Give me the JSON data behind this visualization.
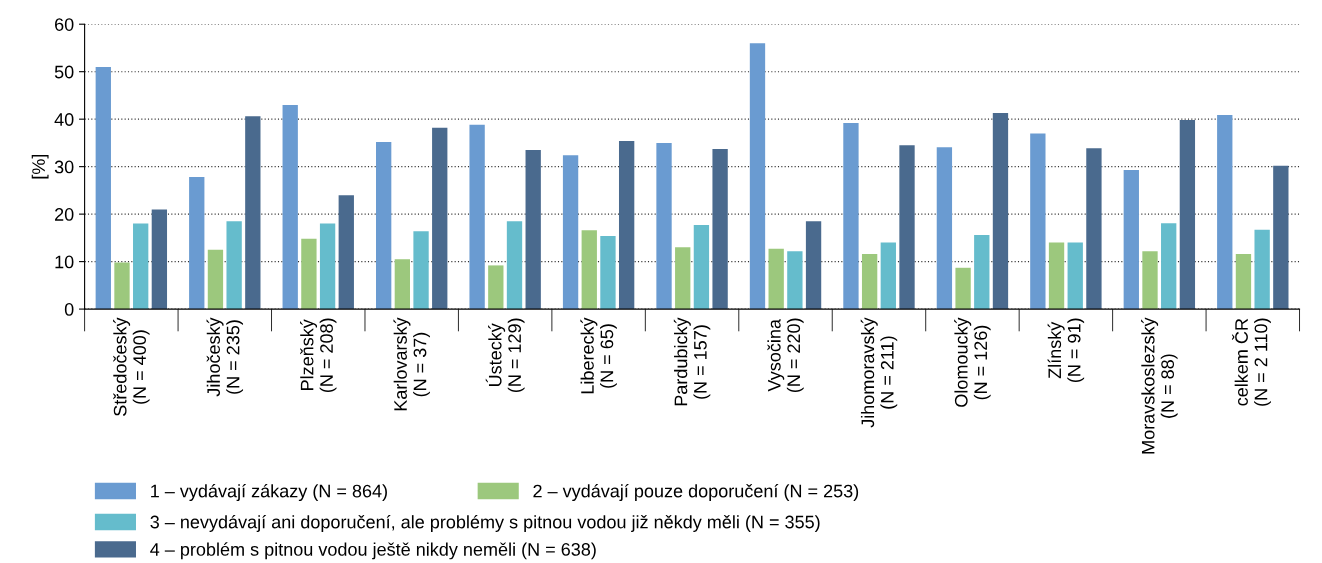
{
  "chart_data": {
    "type": "bar",
    "ylabel": "[%]",
    "ylim": [
      0,
      60
    ],
    "yticks": [
      0,
      10,
      20,
      30,
      40,
      50,
      60
    ],
    "grid": "y",
    "legend": "bottom",
    "categories": [
      "Středočeský\n(N = 400)",
      "Jihočeský\n(N = 235)",
      "Plzeňský\n(N = 208)",
      "Karlovarský\n(N = 37)",
      "Ústecký\n(N = 129)",
      "Liberecký\n(N = 65)",
      "Pardubický\n(N = 157)",
      "Vysočina\n(N = 220)",
      "Jihomoravský\n(N = 211)",
      "Olomoucký\n(N = 126)",
      "Zlínský\n(N = 91)",
      "Moravskoslezský\n(N = 88)",
      "celkem ČR\n(N = 2 110)"
    ],
    "series": [
      {
        "name": "1 – vydávají zákazy (N = 864)",
        "color": "#6a9bd1",
        "values": [
          51,
          27.8,
          43,
          35.2,
          38.8,
          32.4,
          35,
          56,
          39.2,
          34.1,
          37,
          29.3,
          40.9
        ]
      },
      {
        "name": "2 – vydávají pouze doporučení (N = 253)",
        "color": "#9cc87d",
        "values": [
          9.8,
          12.5,
          14.8,
          10.5,
          9.2,
          16.6,
          13,
          12.7,
          11.6,
          8.7,
          14,
          12.2,
          11.6
        ]
      },
      {
        "name": "3 – nevydávají ani doporučení, ale problémy s pitnou vodou již někdy měli (N = 355)",
        "color": "#65bccc",
        "values": [
          18,
          18.5,
          18,
          16.4,
          18.5,
          15.4,
          17.7,
          12.2,
          14,
          15.6,
          14,
          18.1,
          16.7
        ]
      },
      {
        "name": "4 – problém s pitnou vodou ještě nikdy neměli (N = 638)",
        "color": "#4a6a8e",
        "values": [
          21,
          40.6,
          24,
          38.2,
          33.5,
          35.4,
          33.7,
          18.5,
          34.5,
          41.3,
          33.9,
          39.8,
          30.2
        ]
      }
    ]
  }
}
